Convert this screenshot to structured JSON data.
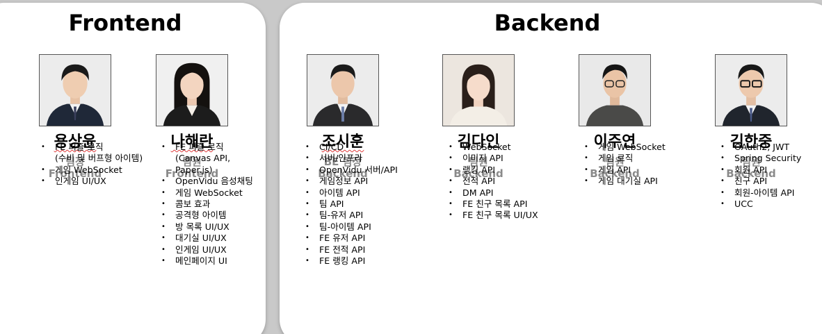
{
  "sections": {
    "frontend_title": "Frontend",
    "backend_title": "Backend"
  },
  "members": [
    {
      "name": "용상윤",
      "role": "팀장",
      "team": "Frontend",
      "tasks": [
        "FE 퍼즐 로직",
        "(수비 및 버프형 아이템)",
        "게임 WebSocket",
        "인게임 UI/UX"
      ]
    },
    {
      "name": "나해란",
      "role": "팀원",
      "team": "Frontend",
      "tasks": [
        "FE 퍼즐 로직",
        "(Canvas API,",
        "Paper.js)",
        "OpenVidu 음성채팅",
        "게임 WebSocket",
        "콤보 효과",
        "공격형 아이템",
        "방 목록 UI/UX",
        "대기실 UI/UX",
        "인게임 UI/UX",
        "메인페이지 UI"
      ]
    },
    {
      "name": "조시훈",
      "role": "BE 팀장",
      "team": "Backend",
      "tasks": [
        "CI/CD",
        "서버/인프라",
        "OpenVidu 서버/API",
        "게임정보 API",
        "아이템 API",
        "팀 API",
        "팀-유저 API",
        "팀-아이템 API",
        "FE 유저 API",
        "FE 전적 API",
        "FE 랭킹 API"
      ]
    },
    {
      "name": "김다인",
      "role": "팀원",
      "team": "Backend",
      "tasks": [
        "WebSocket",
        "이미지 API",
        "랭킹 API",
        "전적 API",
        "DM API",
        "FE 친구 목록 API",
        "FE 친구 목록 UI/UX"
      ]
    },
    {
      "name": "이주연",
      "role": "팀원",
      "team": "Backend",
      "tasks": [
        "게임 WebSocket",
        "게임 로직",
        "게임 API",
        "게임 대기실 API"
      ]
    },
    {
      "name": "김한중",
      "role": "팀원",
      "team": "Backend",
      "tasks": [
        "OAuth2, JWT",
        "Spring Security",
        "회원 API",
        "친구 API",
        "회원-아이템 API",
        "UCC"
      ]
    }
  ]
}
